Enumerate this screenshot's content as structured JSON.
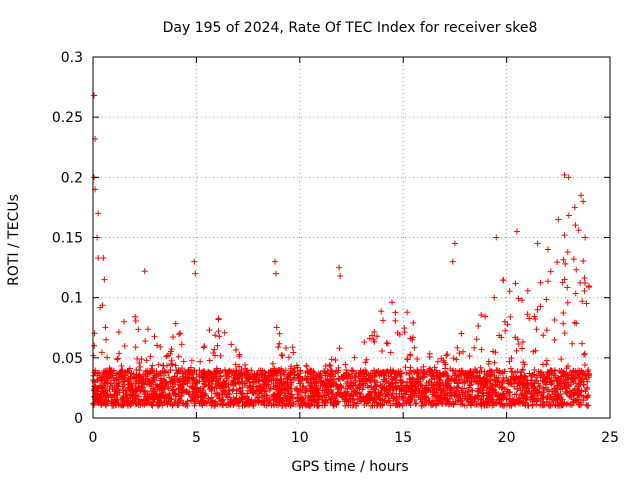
{
  "chart_data": {
    "type": "scatter",
    "title": "Day 195 of 2024, Rate Of TEC Index for receiver ske8",
    "xlabel": "GPS time / hours",
    "ylabel": "ROTI / TECUs",
    "xlim": [
      0,
      25
    ],
    "ylim": [
      0,
      0.3
    ],
    "x_ticks": [
      0,
      5,
      10,
      15,
      20,
      25
    ],
    "x_tick_labels": [
      "0",
      "5",
      "10",
      "15",
      "20",
      "25"
    ],
    "y_ticks": [
      0,
      0.05,
      0.1,
      0.15,
      0.2,
      0.25,
      0.3
    ],
    "y_tick_labels": [
      "0",
      "0.05",
      "0.1",
      "0.15",
      "0.2",
      "0.25",
      "0.3"
    ],
    "grid": true,
    "marker": "+",
    "series": [
      {
        "name": "ROTI",
        "color": "#ff0000",
        "x_range": [
          0,
          24
        ],
        "baseline_range": [
          0.01,
          0.04
        ],
        "envelope": [
          {
            "x": 0.0,
            "y": 0.09
          },
          {
            "x": 0.5,
            "y": 0.1
          },
          {
            "x": 1.0,
            "y": 0.07
          },
          {
            "x": 1.5,
            "y": 0.08
          },
          {
            "x": 2.5,
            "y": 0.09
          },
          {
            "x": 3.5,
            "y": 0.05
          },
          {
            "x": 4.0,
            "y": 0.085
          },
          {
            "x": 5.0,
            "y": 0.06
          },
          {
            "x": 6.0,
            "y": 0.085
          },
          {
            "x": 7.0,
            "y": 0.055
          },
          {
            "x": 8.0,
            "y": 0.04
          },
          {
            "x": 9.0,
            "y": 0.085
          },
          {
            "x": 10.0,
            "y": 0.05
          },
          {
            "x": 11.0,
            "y": 0.04
          },
          {
            "x": 12.0,
            "y": 0.06
          },
          {
            "x": 13.0,
            "y": 0.06
          },
          {
            "x": 14.0,
            "y": 0.095
          },
          {
            "x": 15.0,
            "y": 0.1
          },
          {
            "x": 16.0,
            "y": 0.06
          },
          {
            "x": 17.0,
            "y": 0.05
          },
          {
            "x": 18.0,
            "y": 0.075
          },
          {
            "x": 19.0,
            "y": 0.09
          },
          {
            "x": 20.0,
            "y": 0.12
          },
          {
            "x": 21.0,
            "y": 0.11
          },
          {
            "x": 22.0,
            "y": 0.12
          },
          {
            "x": 23.0,
            "y": 0.18
          },
          {
            "x": 24.0,
            "y": 0.15
          }
        ],
        "peaks": [
          {
            "x": 0.05,
            "y": 0.268
          },
          {
            "x": 0.1,
            "y": 0.232
          },
          {
            "x": 0.05,
            "y": 0.2
          },
          {
            "x": 0.1,
            "y": 0.19
          },
          {
            "x": 0.25,
            "y": 0.17
          },
          {
            "x": 0.2,
            "y": 0.15
          },
          {
            "x": 0.25,
            "y": 0.133
          },
          {
            "x": 0.5,
            "y": 0.133
          },
          {
            "x": 0.55,
            "y": 0.115
          },
          {
            "x": 2.5,
            "y": 0.122
          },
          {
            "x": 4.9,
            "y": 0.13
          },
          {
            "x": 4.95,
            "y": 0.12
          },
          {
            "x": 8.8,
            "y": 0.13
          },
          {
            "x": 8.85,
            "y": 0.12
          },
          {
            "x": 11.9,
            "y": 0.125
          },
          {
            "x": 11.95,
            "y": 0.118
          },
          {
            "x": 17.5,
            "y": 0.145
          },
          {
            "x": 17.4,
            "y": 0.13
          },
          {
            "x": 19.5,
            "y": 0.15
          },
          {
            "x": 20.5,
            "y": 0.155
          },
          {
            "x": 21.5,
            "y": 0.145
          },
          {
            "x": 22.0,
            "y": 0.14
          },
          {
            "x": 22.5,
            "y": 0.165
          },
          {
            "x": 22.8,
            "y": 0.202
          },
          {
            "x": 23.0,
            "y": 0.2
          },
          {
            "x": 23.3,
            "y": 0.175
          },
          {
            "x": 23.6,
            "y": 0.185
          },
          {
            "x": 23.7,
            "y": 0.18
          },
          {
            "x": 23.8,
            "y": 0.15
          }
        ]
      }
    ]
  }
}
